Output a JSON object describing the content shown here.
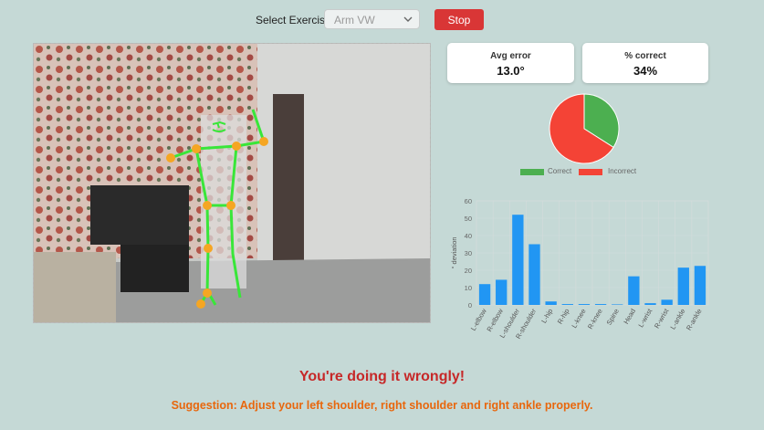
{
  "controls": {
    "select_label": "Select Exercise:",
    "exercise_value": "Arm VW",
    "stop_label": "Stop"
  },
  "stats": {
    "avg_error_title": "Avg error",
    "avg_error_value": "13.0°",
    "correct_title": "% correct",
    "correct_value": "34%"
  },
  "chart_data": [
    {
      "type": "pie",
      "labels": [
        "Correct",
        "Incorrect"
      ],
      "values": [
        34,
        66
      ],
      "colors": [
        "#4caf50",
        "#f44336"
      ],
      "legend": "bottom"
    },
    {
      "type": "bar",
      "categories": [
        "L-elbow",
        "R-elbow",
        "L-shoulder",
        "R-shoulder",
        "L-hip",
        "R-hip",
        "L-knee",
        "R-knee",
        "Spine",
        "Head",
        "L-wrist",
        "R-wrist",
        "L-ankle",
        "R-ankle"
      ],
      "values": [
        12,
        14.5,
        52,
        35,
        2,
        0.5,
        0.5,
        0.5,
        0.3,
        16.5,
        1,
        3,
        21.5,
        22.5
      ],
      "ylabel": "° deviation",
      "ylim": [
        0,
        60
      ],
      "yticks": [
        0,
        10,
        20,
        30,
        40,
        50,
        60
      ],
      "color": "#2196f3",
      "grid": true
    }
  ],
  "feedback": {
    "status": "You're doing it wrongly!",
    "suggestion": "Suggestion: Adjust your left shoulder, right shoulder and right ankle properly."
  },
  "colors": {
    "background": "#c5d9d6",
    "stop_button": "#d93636",
    "skeleton_line": "#39e639",
    "skeleton_joint": "#f5a623"
  }
}
